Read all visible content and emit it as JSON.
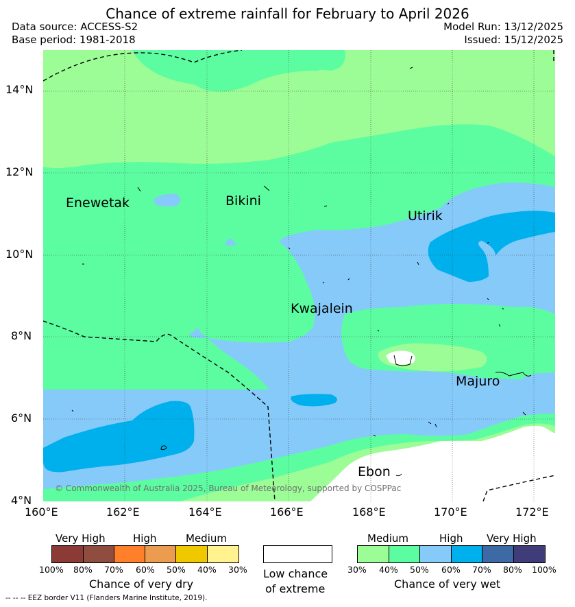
{
  "title": "Chance of extreme rainfall for February to April 2026",
  "info": {
    "data_source": "Data source: ACCESS-S2",
    "base_period": "Base period: 1981-2018",
    "model_run": "Model Run: 13/12/2025",
    "issued": "Issued: 15/12/2025"
  },
  "map": {
    "lat_ticks": [
      "14°N",
      "12°N",
      "10°N",
      "8°N",
      "6°N",
      "4°N"
    ],
    "lon_ticks": [
      "160°E",
      "162°E",
      "164°E",
      "166°E",
      "168°E",
      "170°E",
      "172°E"
    ],
    "places": [
      "Enewetak",
      "Bikini",
      "Utirik",
      "Kwajalein",
      "Majuro",
      "Ebon"
    ],
    "copyright": "© Commonwealth of Australia 2025, Bureau of Meteorology, supported by COSPPac",
    "colors": {
      "wet_30_40": "#9cfc96",
      "wet_40_50": "#5cfda0",
      "wet_50_60": "#86cafa",
      "wet_60_70": "#00b0ec",
      "low": "#ffffff"
    }
  },
  "legend": {
    "dry": {
      "levels": [
        "Very High",
        "High",
        "Medium"
      ],
      "ticks": [
        "100%",
        "80%",
        "70%",
        "60%",
        "50%",
        "40%",
        "30%"
      ],
      "colors": [
        "#8b3a35",
        "#8e4d3f",
        "#ff7f2b",
        "#eb9c4f",
        "#f0c800",
        "#fff28f"
      ],
      "title": "Chance of very dry"
    },
    "low": {
      "line1": "Low chance",
      "line2": "of extreme"
    },
    "wet": {
      "levels": [
        "Medium",
        "High",
        "Very High"
      ],
      "ticks": [
        "30%",
        "40%",
        "50%",
        "60%",
        "70%",
        "80%",
        "100%"
      ],
      "colors": [
        "#9cfc96",
        "#5cfda0",
        "#86cafa",
        "#00b0ec",
        "#3d6aa5",
        "#3f3c79"
      ],
      "title": "Chance of very wet"
    }
  },
  "footnote": "--  --  -- EEZ border V11 (Flanders Marine Institute, 2019)."
}
